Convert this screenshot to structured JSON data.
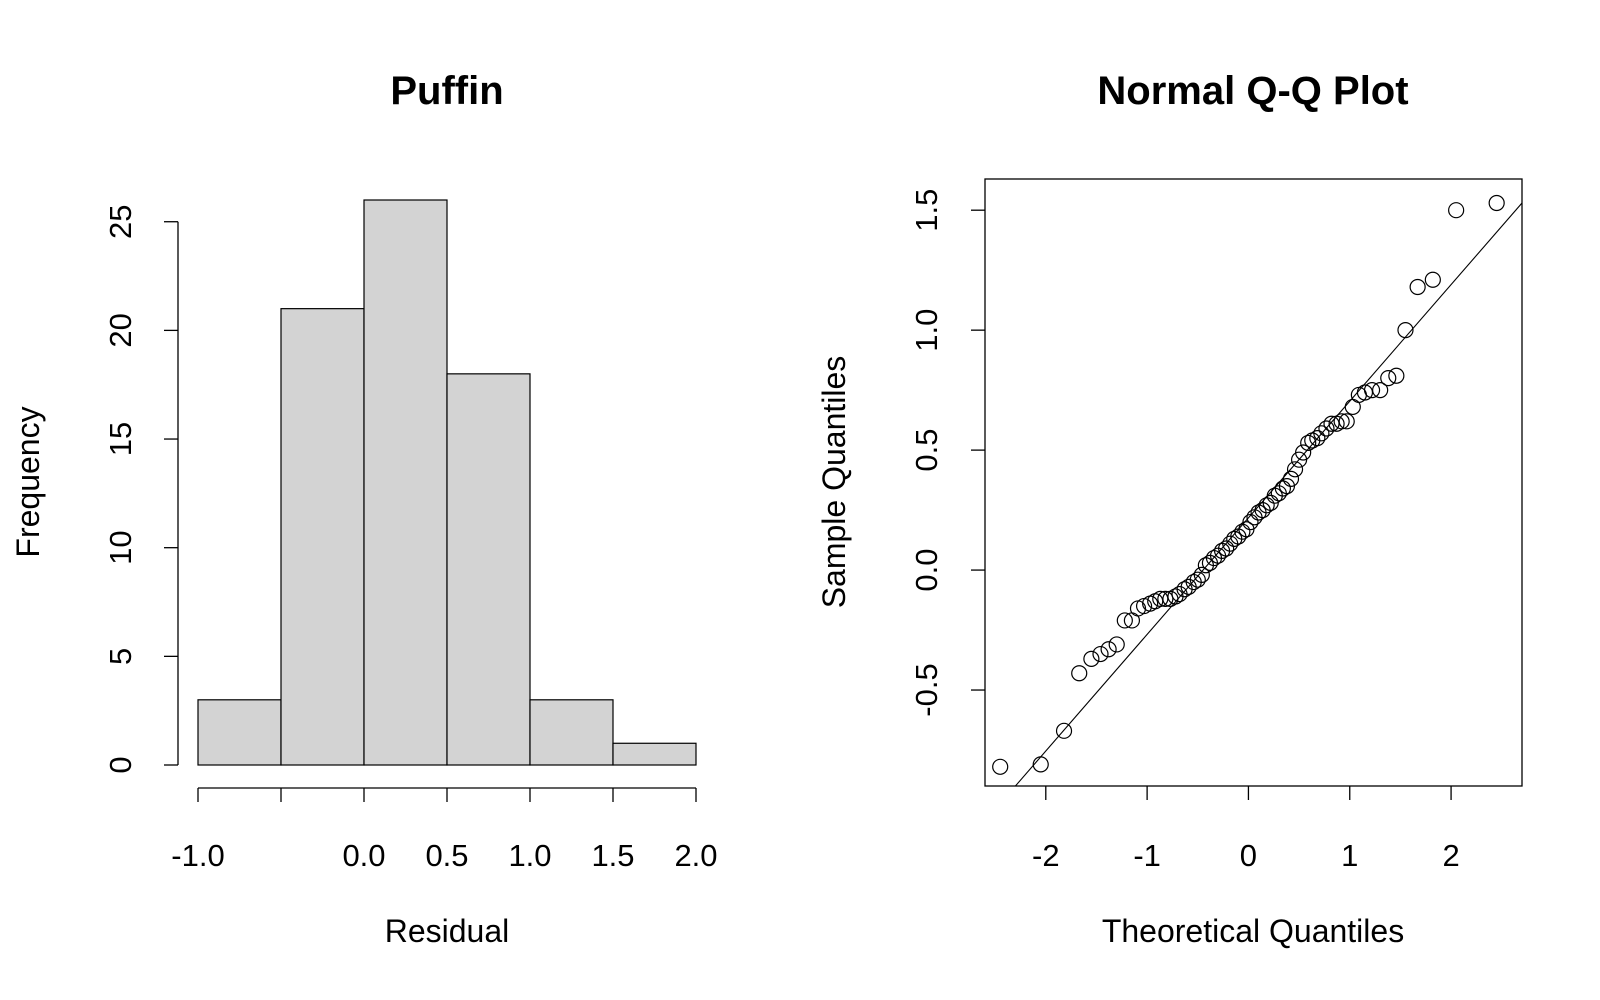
{
  "chart_data": [
    {
      "type": "bar",
      "title": "Puffin",
      "xlabel": "Residual",
      "ylabel": "Frequency",
      "bins": [
        [
          -1.0,
          -0.5
        ],
        [
          -0.5,
          0.0
        ],
        [
          0.0,
          0.5
        ],
        [
          0.5,
          1.0
        ],
        [
          1.0,
          1.5
        ],
        [
          1.5,
          2.0
        ]
      ],
      "values": [
        3,
        21,
        26,
        18,
        3,
        1
      ],
      "xticks": [
        -1.0,
        -0.5,
        0.0,
        0.5,
        1.0,
        1.5,
        2.0
      ],
      "xtick_labels": [
        "-1.0",
        "",
        "0.0",
        "0.5",
        "1.0",
        "1.5",
        "2.0"
      ],
      "yticks": [
        0,
        5,
        10,
        15,
        20,
        25
      ],
      "ytick_labels": [
        "0",
        "5",
        "10",
        "15",
        "20",
        "25"
      ],
      "xlim": [
        -1.0,
        2.0
      ],
      "ylim": [
        0,
        26
      ],
      "fill_color": "#d3d3d3"
    },
    {
      "type": "scatter",
      "title": "Normal Q-Q Plot",
      "xlabel": "Theoretical Quantiles",
      "ylabel": "Sample Quantiles",
      "xticks": [
        -2,
        -1,
        0,
        1,
        2
      ],
      "xtick_labels": [
        "-2",
        "-1",
        "0",
        "1",
        "2"
      ],
      "yticks": [
        -0.5,
        0.0,
        0.5,
        1.0,
        1.5
      ],
      "ytick_labels": [
        "-0.5",
        "0.0",
        "0.5",
        "1.0",
        "1.5"
      ],
      "xlim": [
        -2.6,
        2.7
      ],
      "ylim": [
        -0.9,
        1.63
      ],
      "points": [
        [
          -2.45,
          -0.82
        ],
        [
          -2.05,
          -0.81
        ],
        [
          -1.82,
          -0.67
        ],
        [
          -1.67,
          -0.43
        ],
        [
          -1.55,
          -0.37
        ],
        [
          -1.46,
          -0.35
        ],
        [
          -1.38,
          -0.33
        ],
        [
          -1.3,
          -0.31
        ],
        [
          -1.22,
          -0.21
        ],
        [
          -1.15,
          -0.21
        ],
        [
          -1.09,
          -0.16
        ],
        [
          -1.03,
          -0.15
        ],
        [
          -0.97,
          -0.14
        ],
        [
          -0.92,
          -0.13
        ],
        [
          -0.87,
          -0.12
        ],
        [
          -0.82,
          -0.12
        ],
        [
          -0.77,
          -0.12
        ],
        [
          -0.72,
          -0.11
        ],
        [
          -0.68,
          -0.1
        ],
        [
          -0.63,
          -0.08
        ],
        [
          -0.59,
          -0.07
        ],
        [
          -0.54,
          -0.05
        ],
        [
          -0.5,
          -0.04
        ],
        [
          -0.46,
          -0.02
        ],
        [
          -0.42,
          0.02
        ],
        [
          -0.38,
          0.03
        ],
        [
          -0.34,
          0.05
        ],
        [
          -0.3,
          0.06
        ],
        [
          -0.26,
          0.08
        ],
        [
          -0.22,
          0.09
        ],
        [
          -0.18,
          0.11
        ],
        [
          -0.14,
          0.13
        ],
        [
          -0.1,
          0.14
        ],
        [
          -0.06,
          0.16
        ],
        [
          -0.02,
          0.17
        ],
        [
          0.02,
          0.2
        ],
        [
          0.06,
          0.22
        ],
        [
          0.1,
          0.24
        ],
        [
          0.14,
          0.25
        ],
        [
          0.18,
          0.27
        ],
        [
          0.22,
          0.28
        ],
        [
          0.26,
          0.31
        ],
        [
          0.3,
          0.32
        ],
        [
          0.34,
          0.34
        ],
        [
          0.38,
          0.35
        ],
        [
          0.42,
          0.38
        ],
        [
          0.46,
          0.42
        ],
        [
          0.5,
          0.46
        ],
        [
          0.54,
          0.49
        ],
        [
          0.59,
          0.53
        ],
        [
          0.63,
          0.54
        ],
        [
          0.68,
          0.55
        ],
        [
          0.72,
          0.57
        ],
        [
          0.77,
          0.59
        ],
        [
          0.82,
          0.61
        ],
        [
          0.87,
          0.61
        ],
        [
          0.92,
          0.62
        ],
        [
          0.97,
          0.62
        ],
        [
          1.03,
          0.68
        ],
        [
          1.09,
          0.73
        ],
        [
          1.15,
          0.74
        ],
        [
          1.22,
          0.75
        ],
        [
          1.3,
          0.75
        ],
        [
          1.38,
          0.8
        ],
        [
          1.46,
          0.81
        ],
        [
          1.55,
          1.0
        ],
        [
          1.67,
          1.18
        ],
        [
          1.82,
          1.21
        ],
        [
          2.05,
          1.5
        ],
        [
          2.45,
          1.53
        ]
      ],
      "reference_line": [
        [
          -2.3,
          -0.9
        ],
        [
          2.7,
          1.53
        ]
      ],
      "marker": "open-circle"
    }
  ]
}
